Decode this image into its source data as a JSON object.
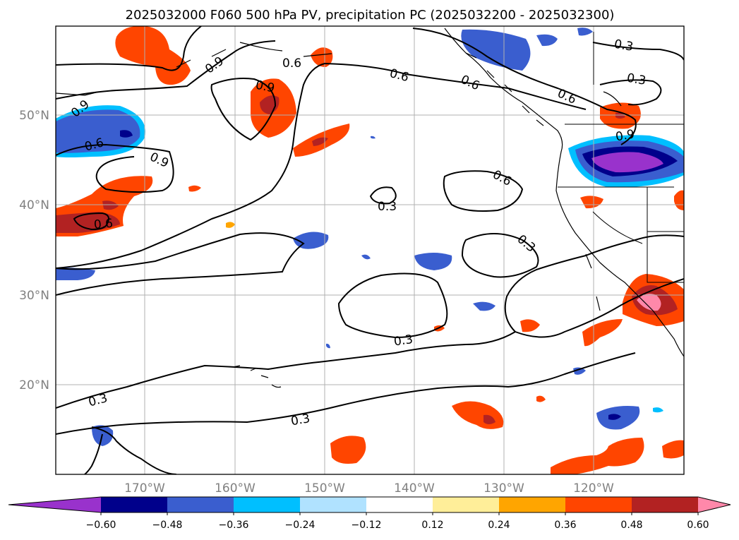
{
  "title": "2025032000 F060 500 hPa PV, precipitation PC (2025032200 - 2025032300)",
  "map": {
    "lat_labels": [
      "50°N",
      "40°N",
      "30°N",
      "20°N"
    ],
    "lon_labels": [
      "170°W",
      "160°W",
      "150°W",
      "140°W",
      "130°W",
      "120°W"
    ],
    "gridlines": true
  },
  "pv_contours": {
    "line_color": "#000000",
    "labels": [
      "0.9",
      "0.6",
      "0.9",
      "0.6",
      "0.6",
      "0.6",
      "0.9",
      "0.6",
      "0.3",
      "0.3",
      "0.9",
      "0.9",
      "0.6",
      "0.3",
      "0.6",
      "0.3",
      "0.3",
      "0.3",
      "0.3"
    ]
  },
  "colorbar": {
    "colors": [
      "#9932cc",
      "#00008b",
      "#3a5ecf",
      "#00bfff",
      "#b0e2ff",
      "#ffffff",
      "#ffee99",
      "#ffa500",
      "#ff4500",
      "#b22222",
      "#ff88aa"
    ],
    "under_color": "#9932cc",
    "over_color": "#ff88aa",
    "tick_labels": [
      "−0.60",
      "−0.48",
      "−0.36",
      "−0.24",
      "−0.12",
      "0.12",
      "0.24",
      "0.36",
      "0.48",
      "0.60"
    ]
  }
}
